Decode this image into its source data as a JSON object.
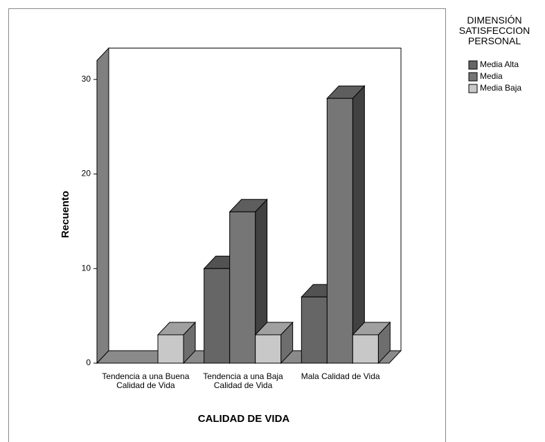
{
  "chart_data": {
    "type": "bar3d",
    "xlabel": "CALIDAD DE VIDA",
    "ylabel": "Recuento",
    "categories": [
      "Tendencia a una Buena Calidad de Vida",
      "Tendencia a una Baja Calidad de Vida",
      "Mala Calidad de Vida"
    ],
    "series": [
      {
        "name": "Media Alta",
        "color": "#666666",
        "values": [
          0,
          10,
          7
        ]
      },
      {
        "name": "Media",
        "color": "#767676",
        "values": [
          0,
          16,
          28
        ]
      },
      {
        "name": "Media Baja",
        "color": "#c8c8c8",
        "values": [
          3,
          3,
          3
        ]
      }
    ],
    "ylim": [
      0,
      32
    ],
    "yticks": [
      0,
      10,
      20,
      30
    ],
    "grid": false,
    "legend_title": "DIMENSIÓN SATISFECCION PERSONAL",
    "legend_position": "right"
  }
}
